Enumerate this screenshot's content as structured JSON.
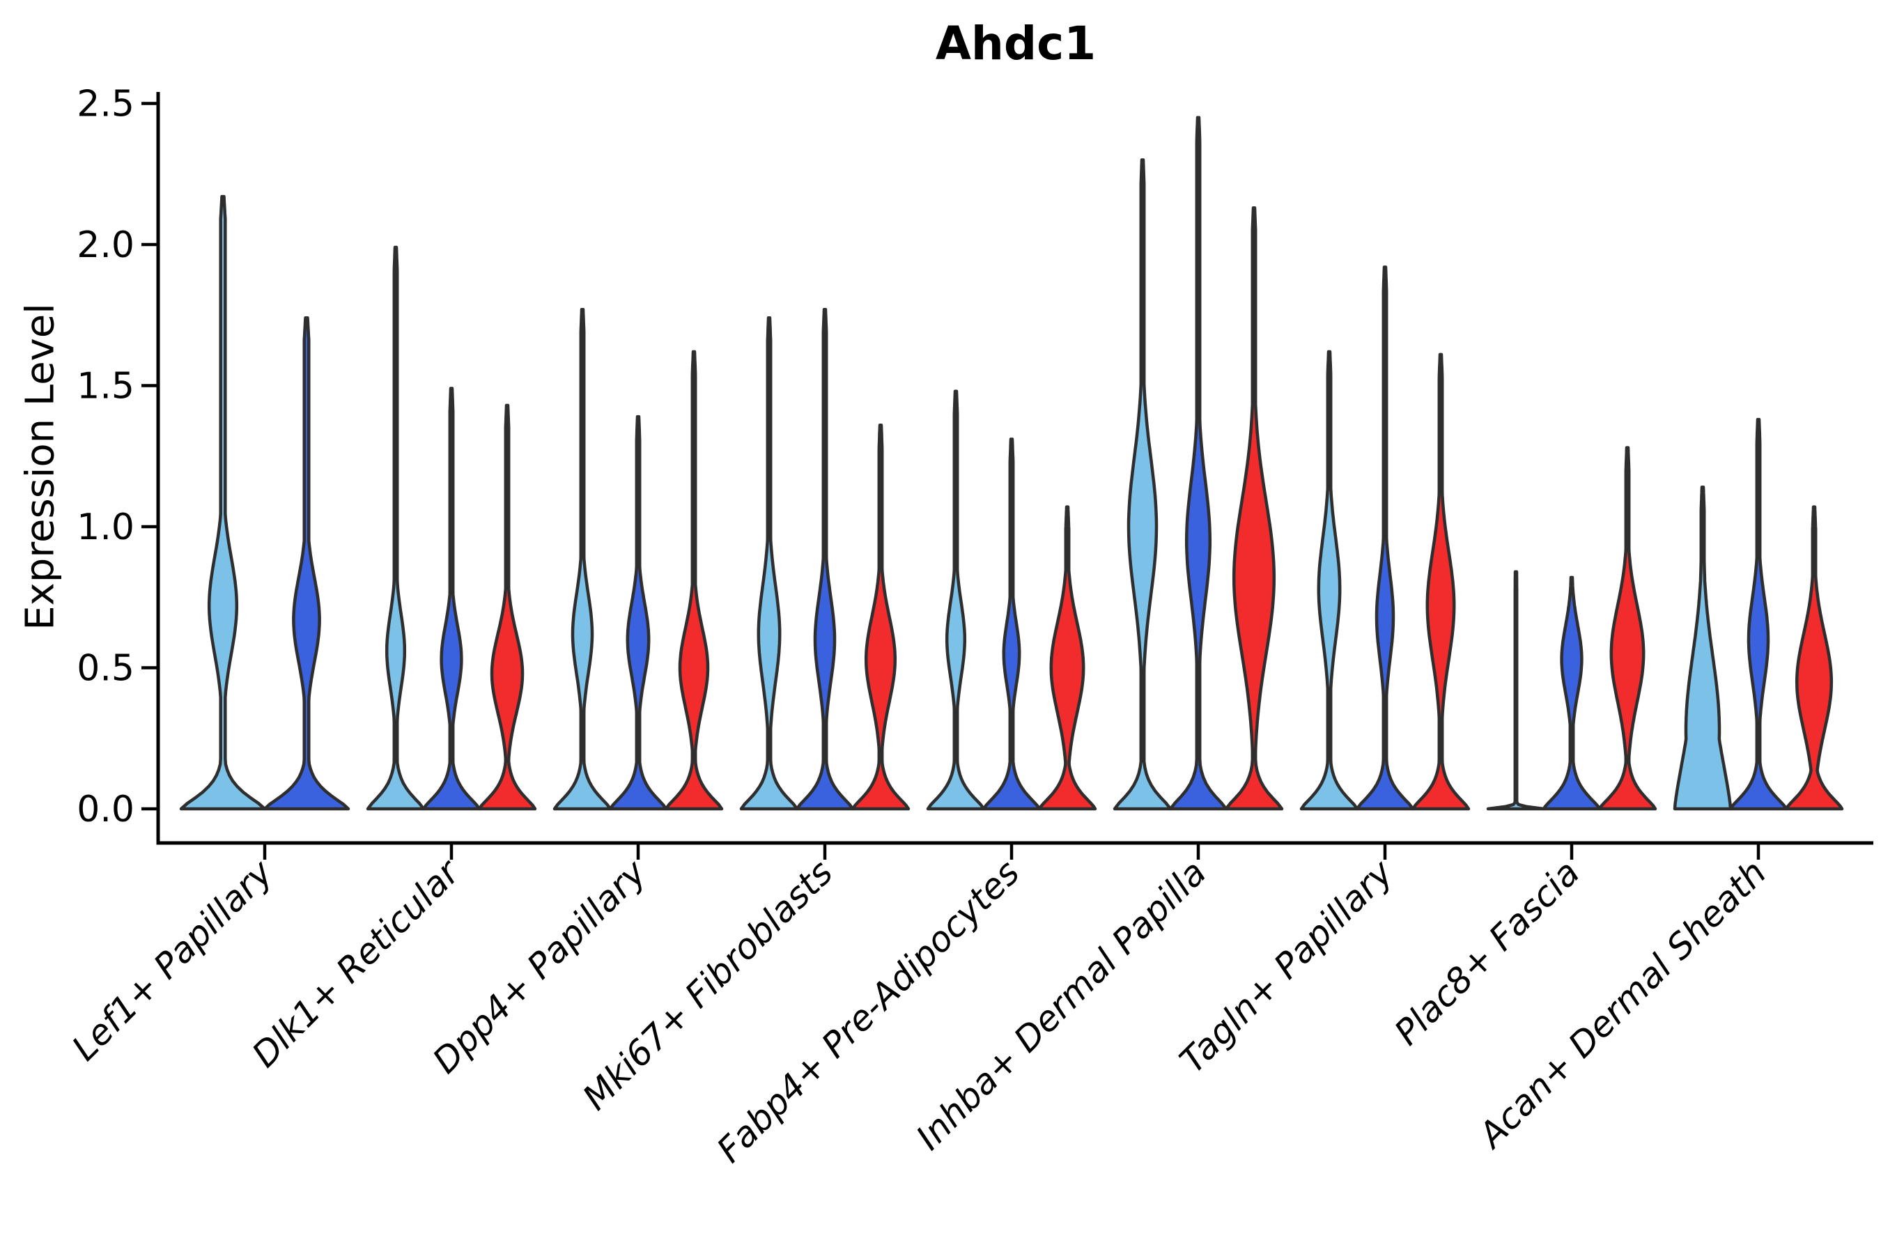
{
  "chart_data": {
    "type": "violin",
    "title": "Ahdc1",
    "xlabel": "",
    "ylabel": "Expression Level",
    "yticks": [
      0.0,
      0.5,
      1.0,
      1.5,
      2.0,
      2.5
    ],
    "ylim": [
      -0.12,
      2.55
    ],
    "grid": false,
    "legend": "none",
    "outline_color": "#2e2e2e",
    "palette": {
      "light_blue": "#7CC2E8",
      "dark_blue": "#3A62DE",
      "red": "#F22C2C"
    },
    "categories": [
      "Lef1+ Papillary",
      "Dlk1+ Reticular",
      "Dpp4+ Papillary",
      "Mki67+ Fibroblasts",
      "Fabp4+ Pre-Adipocytes",
      "Inhba+ Dermal Papilla",
      "Tagln+ Papillary",
      "Plac8+ Fascia",
      "Acan+ Dermal Sheath"
    ],
    "groups": [
      {
        "label": "Lef1+ Papillary",
        "violins": [
          {
            "series": "light_blue",
            "max": 2.17,
            "bulge_center": 0.72,
            "bulge_sigma": 0.17,
            "bulge_width": 0.33
          },
          {
            "series": "dark_blue",
            "max": 1.74,
            "bulge_center": 0.67,
            "bulge_sigma": 0.15,
            "bulge_width": 0.31
          }
        ]
      },
      {
        "label": "Dlk1+ Reticular",
        "violins": [
          {
            "series": "light_blue",
            "max": 1.99,
            "bulge_center": 0.56,
            "bulge_sigma": 0.13,
            "bulge_width": 0.32
          },
          {
            "series": "dark_blue",
            "max": 1.49,
            "bulge_center": 0.53,
            "bulge_sigma": 0.12,
            "bulge_width": 0.36
          },
          {
            "series": "red",
            "max": 1.43,
            "bulge_center": 0.48,
            "bulge_sigma": 0.14,
            "bulge_width": 0.55
          }
        ]
      },
      {
        "label": "Dpp4+ Papillary",
        "violins": [
          {
            "series": "light_blue",
            "max": 1.77,
            "bulge_center": 0.62,
            "bulge_sigma": 0.14,
            "bulge_width": 0.35
          },
          {
            "series": "dark_blue",
            "max": 1.39,
            "bulge_center": 0.6,
            "bulge_sigma": 0.13,
            "bulge_width": 0.38
          },
          {
            "series": "red",
            "max": 1.62,
            "bulge_center": 0.5,
            "bulge_sigma": 0.14,
            "bulge_width": 0.5
          }
        ]
      },
      {
        "label": "Mki67+ Fibroblasts",
        "violins": [
          {
            "series": "light_blue",
            "max": 1.74,
            "bulge_center": 0.62,
            "bulge_sigma": 0.17,
            "bulge_width": 0.38
          },
          {
            "series": "dark_blue",
            "max": 1.77,
            "bulge_center": 0.6,
            "bulge_sigma": 0.15,
            "bulge_width": 0.35
          },
          {
            "series": "red",
            "max": 1.36,
            "bulge_center": 0.53,
            "bulge_sigma": 0.15,
            "bulge_width": 0.52
          }
        ]
      },
      {
        "label": "Fabp4+ Pre-Adipocytes",
        "violins": [
          {
            "series": "light_blue",
            "max": 1.48,
            "bulge_center": 0.6,
            "bulge_sigma": 0.13,
            "bulge_width": 0.32
          },
          {
            "series": "dark_blue",
            "max": 1.31,
            "bulge_center": 0.55,
            "bulge_sigma": 0.11,
            "bulge_width": 0.28
          },
          {
            "series": "red",
            "max": 1.07,
            "bulge_center": 0.5,
            "bulge_sigma": 0.16,
            "bulge_width": 0.58
          }
        ]
      },
      {
        "label": "Inhba+ Dermal Papilla",
        "violins": [
          {
            "series": "light_blue",
            "max": 2.3,
            "bulge_center": 1.0,
            "bulge_sigma": 0.24,
            "bulge_width": 0.5
          },
          {
            "series": "dark_blue",
            "max": 2.45,
            "bulge_center": 0.95,
            "bulge_sigma": 0.21,
            "bulge_width": 0.42
          },
          {
            "series": "red",
            "max": 2.13,
            "bulge_center": 0.82,
            "bulge_sigma": 0.27,
            "bulge_width": 0.72
          }
        ]
      },
      {
        "label": "Tagln+ Papillary",
        "violins": [
          {
            "series": "light_blue",
            "max": 1.62,
            "bulge_center": 0.78,
            "bulge_sigma": 0.18,
            "bulge_width": 0.38
          },
          {
            "series": "dark_blue",
            "max": 1.92,
            "bulge_center": 0.68,
            "bulge_sigma": 0.15,
            "bulge_width": 0.3
          },
          {
            "series": "red",
            "max": 1.61,
            "bulge_center": 0.72,
            "bulge_sigma": 0.19,
            "bulge_width": 0.48
          }
        ]
      },
      {
        "label": "Plac8+ Fascia",
        "violins": [
          {
            "series": "light_blue",
            "max": 0.84,
            "flat": true,
            "bulge_center": 0.0,
            "bulge_sigma": 1.0,
            "bulge_width": 0.0
          },
          {
            "series": "dark_blue",
            "max": 0.82,
            "bulge_center": 0.53,
            "bulge_sigma": 0.12,
            "bulge_width": 0.36
          },
          {
            "series": "red",
            "max": 1.28,
            "bulge_center": 0.55,
            "bulge_sigma": 0.17,
            "bulge_width": 0.58
          }
        ]
      },
      {
        "label": "Acan+ Dermal Sheath",
        "violins": [
          {
            "series": "light_blue",
            "max": 1.14,
            "base_decay": 0.4,
            "bulge_center": 0.28,
            "bulge_sigma": 0.26,
            "bulge_width": 0.6
          },
          {
            "series": "dark_blue",
            "max": 1.38,
            "bulge_center": 0.6,
            "bulge_sigma": 0.15,
            "bulge_width": 0.35
          },
          {
            "series": "red",
            "max": 1.07,
            "bulge_center": 0.45,
            "bulge_sigma": 0.17,
            "bulge_width": 0.62
          }
        ]
      }
    ]
  }
}
